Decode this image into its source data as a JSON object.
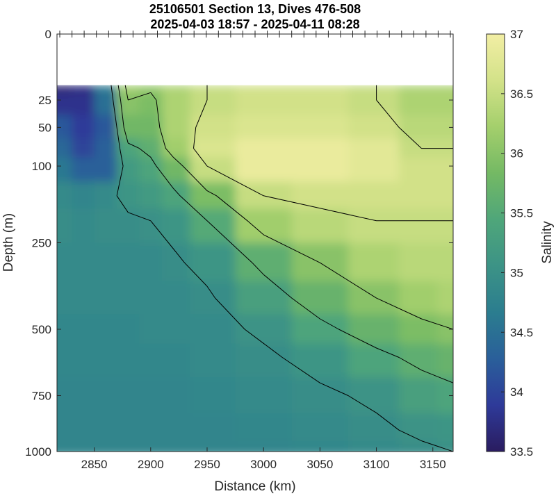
{
  "chart_data": {
    "type": "heatmap",
    "title_lines": [
      "25106501 Section 13, Dives 476-508",
      "2025-04-03 18:57 - 2025-04-11 08:28"
    ],
    "xlabel": "Distance (km)",
    "ylabel": "Depth (m)",
    "colorbar_label": "Salinity",
    "x_ticks": [
      2850,
      2900,
      2950,
      3000,
      3050,
      3100,
      3150
    ],
    "y_ticks": [
      0,
      25,
      50,
      100,
      250,
      500,
      750,
      1000
    ],
    "colorbar_ticks": [
      "33.5",
      "34",
      "34.5",
      "35",
      "35.5",
      "36",
      "36.5",
      "37"
    ],
    "xlim": [
      2817,
      3168
    ],
    "ylim": [
      0,
      1000
    ],
    "clim": [
      33.5,
      37
    ],
    "y_scale": "sqrt",
    "contour_levels": [
      35.0,
      35.5,
      36.0,
      36.5
    ],
    "colormap": [
      "#2a1c5f",
      "#2e3a99",
      "#2a5f9a",
      "#2b7d8f",
      "#3c9386",
      "#4fa67a",
      "#74b964",
      "#a4cf6c",
      "#d3e289",
      "#f2eea4"
    ],
    "data_gap_top_depth": 15,
    "dive_count": 33,
    "distance_km": [
      2820,
      2840,
      2860,
      2880,
      2900,
      2920,
      2950,
      3000,
      3050,
      3100,
      3140,
      3168
    ],
    "depth_m": [
      15,
      25,
      50,
      75,
      100,
      150,
      200,
      300,
      400,
      500,
      600,
      750,
      900,
      1000
    ],
    "salinity": [
      [
        33.6,
        33.7,
        34.6,
        36.2,
        36.1,
        36.3,
        36.5,
        36.6,
        36.6,
        36.5,
        36.3,
        36.3
      ],
      [
        33.8,
        33.8,
        34.5,
        36.0,
        35.9,
        36.3,
        36.5,
        36.6,
        36.6,
        36.5,
        36.3,
        36.3
      ],
      [
        34.2,
        33.9,
        34.2,
        35.8,
        35.8,
        36.3,
        36.6,
        36.7,
        36.7,
        36.6,
        36.4,
        36.4
      ],
      [
        34.4,
        34.0,
        34.3,
        35.4,
        35.6,
        36.2,
        36.7,
        36.9,
        36.9,
        36.8,
        36.5,
        36.5
      ],
      [
        34.6,
        34.3,
        34.3,
        35.2,
        35.4,
        35.8,
        36.5,
        36.9,
        36.9,
        36.8,
        36.6,
        36.6
      ],
      [
        34.9,
        34.8,
        34.9,
        35.1,
        35.2,
        35.4,
        35.9,
        36.5,
        36.6,
        36.6,
        36.6,
        36.6
      ],
      [
        34.95,
        34.9,
        34.95,
        34.95,
        35.0,
        35.1,
        35.5,
        36.2,
        36.4,
        36.5,
        36.5,
        36.5
      ],
      [
        34.9,
        34.9,
        34.9,
        34.9,
        34.9,
        34.95,
        35.1,
        35.6,
        36.0,
        36.3,
        36.4,
        36.4
      ],
      [
        34.9,
        34.9,
        34.9,
        34.9,
        34.9,
        34.9,
        34.95,
        35.3,
        35.7,
        36.0,
        36.2,
        36.3
      ],
      [
        34.85,
        34.85,
        34.85,
        34.85,
        34.9,
        34.9,
        34.9,
        35.05,
        35.4,
        35.7,
        35.9,
        36.0
      ],
      [
        34.85,
        34.85,
        34.85,
        34.85,
        34.85,
        34.85,
        34.9,
        34.95,
        35.1,
        35.4,
        35.6,
        35.7
      ],
      [
        34.8,
        34.8,
        34.8,
        34.8,
        34.8,
        34.8,
        34.85,
        34.9,
        34.95,
        35.05,
        35.3,
        35.4
      ],
      [
        34.8,
        34.8,
        34.8,
        34.8,
        34.8,
        34.8,
        34.8,
        34.85,
        34.9,
        34.95,
        35.05,
        35.1
      ],
      [
        34.8,
        34.8,
        34.8,
        34.8,
        34.8,
        34.8,
        34.8,
        34.8,
        34.85,
        34.9,
        34.95,
        35.0
      ]
    ]
  }
}
